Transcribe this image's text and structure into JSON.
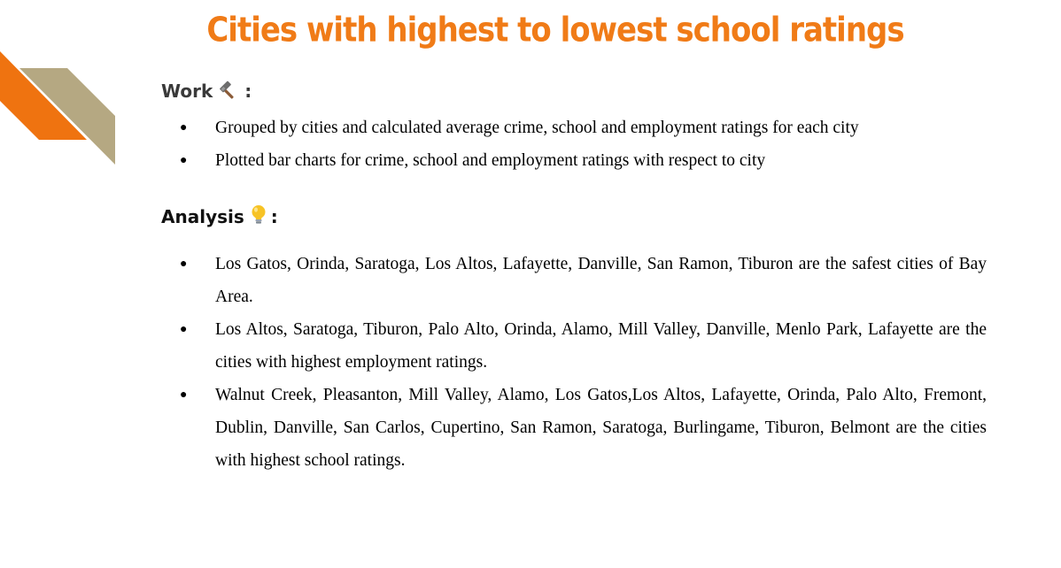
{
  "title": "Cities with highest to lowest school ratings",
  "colors": {
    "title": "#f07b17",
    "deco_orange": "#ef7310",
    "deco_tan": "#b5a882"
  },
  "work": {
    "heading": "Work",
    "icon": "hammer-icon",
    "colon": ":",
    "items": [
      "Grouped by cities and calculated average crime, school and employment ratings for each city",
      "Plotted bar charts for crime, school and employment ratings with respect to city"
    ]
  },
  "analysis": {
    "heading": "Analysis",
    "icon": "lightbulb-icon",
    "colon": ":",
    "items": [
      "Los Gatos, Orinda, Saratoga, Los Altos, Lafayette, Danville, San Ramon, Tiburon are the safest cities of Bay Area.",
      "Los Altos, Saratoga, Tiburon, Palo Alto, Orinda, Alamo, Mill Valley, Danville, Menlo Park, Lafayette are the cities with highest employment ratings.",
      "Walnut Creek, Pleasanton, Mill Valley, Alamo, Los Gatos,Los Altos, Lafayette, Orinda, Palo Alto, Fremont, Dublin, Danville, San Carlos, Cupertino, San Ramon, Saratoga, Burlingame, Tiburon, Belmont are the cities with highest school ratings."
    ]
  },
  "bullet": "●"
}
